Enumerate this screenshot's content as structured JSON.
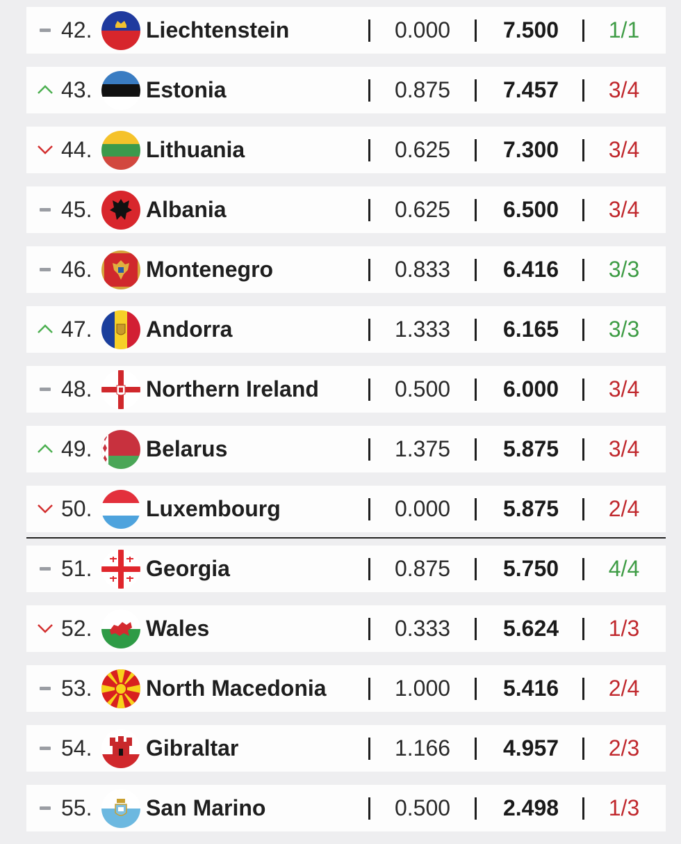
{
  "colors": {
    "up": "#4caf50",
    "down": "#d32f2f",
    "same": "#9a9da3",
    "ratio_green": "#3e9c45",
    "ratio_red": "#c0282d"
  },
  "rows": [
    {
      "trend": "same",
      "rank": "42.",
      "name": "Liechtenstein",
      "flag": "liechtenstein-flag-icon",
      "coef": "0.000",
      "total": "7.500",
      "ratio": "1/1",
      "ratio_color": "green"
    },
    {
      "trend": "up",
      "rank": "43.",
      "name": "Estonia",
      "flag": "estonia-flag-icon",
      "coef": "0.875",
      "total": "7.457",
      "ratio": "3/4",
      "ratio_color": "red"
    },
    {
      "trend": "down",
      "rank": "44.",
      "name": "Lithuania",
      "flag": "lithuania-flag-icon",
      "coef": "0.625",
      "total": "7.300",
      "ratio": "3/4",
      "ratio_color": "red"
    },
    {
      "trend": "same",
      "rank": "45.",
      "name": "Albania",
      "flag": "albania-flag-icon",
      "coef": "0.625",
      "total": "6.500",
      "ratio": "3/4",
      "ratio_color": "red"
    },
    {
      "trend": "same",
      "rank": "46.",
      "name": "Montenegro",
      "flag": "montenegro-flag-icon",
      "coef": "0.833",
      "total": "6.416",
      "ratio": "3/3",
      "ratio_color": "green"
    },
    {
      "trend": "up",
      "rank": "47.",
      "name": "Andorra",
      "flag": "andorra-flag-icon",
      "coef": "1.333",
      "total": "6.165",
      "ratio": "3/3",
      "ratio_color": "green"
    },
    {
      "trend": "same",
      "rank": "48.",
      "name": "Northern Ireland",
      "flag": "northern-ireland-flag-icon",
      "coef": "0.500",
      "total": "6.000",
      "ratio": "3/4",
      "ratio_color": "red"
    },
    {
      "trend": "up",
      "rank": "49.",
      "name": "Belarus",
      "flag": "belarus-flag-icon",
      "coef": "1.375",
      "total": "5.875",
      "ratio": "3/4",
      "ratio_color": "red"
    },
    {
      "trend": "down",
      "rank": "50.",
      "name": "Luxembourg",
      "flag": "luxembourg-flag-icon",
      "coef": "0.000",
      "total": "5.875",
      "ratio": "2/4",
      "ratio_color": "red"
    },
    {
      "trend": "same",
      "rank": "51.",
      "name": "Georgia",
      "flag": "georgia-flag-icon",
      "coef": "0.875",
      "total": "5.750",
      "ratio": "4/4",
      "ratio_color": "green"
    },
    {
      "trend": "down",
      "rank": "52.",
      "name": "Wales",
      "flag": "wales-flag-icon",
      "coef": "0.333",
      "total": "5.624",
      "ratio": "1/3",
      "ratio_color": "red"
    },
    {
      "trend": "same",
      "rank": "53.",
      "name": "North Macedonia",
      "flag": "north-macedonia-flag-icon",
      "coef": "1.000",
      "total": "5.416",
      "ratio": "2/4",
      "ratio_color": "red"
    },
    {
      "trend": "same",
      "rank": "54.",
      "name": "Gibraltar",
      "flag": "gibraltar-flag-icon",
      "coef": "1.166",
      "total": "4.957",
      "ratio": "2/3",
      "ratio_color": "red"
    },
    {
      "trend": "same",
      "rank": "55.",
      "name": "San Marino",
      "flag": "san-marino-flag-icon",
      "coef": "0.500",
      "total": "2.498",
      "ratio": "1/3",
      "ratio_color": "red"
    }
  ]
}
